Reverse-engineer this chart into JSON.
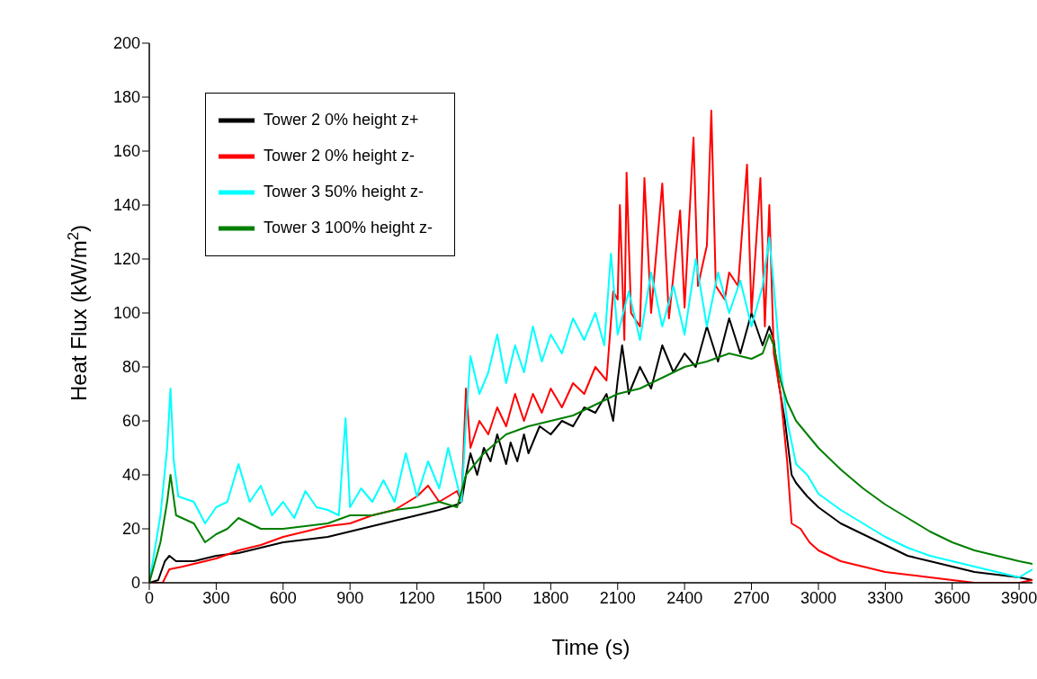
{
  "chart_data": {
    "type": "line",
    "xlabel": "Time (s)",
    "ylabel": "Heat Flux (kW/m$^{2}$)",
    "xlim": [
      0,
      3960
    ],
    "xticks": [
      0,
      300,
      600,
      900,
      1200,
      1500,
      1800,
      2100,
      2400,
      2700,
      3000,
      3300,
      3600,
      3900
    ],
    "ylim": [
      0,
      200
    ],
    "yticks": [
      0,
      20,
      40,
      60,
      80,
      100,
      120,
      140,
      160,
      180,
      200
    ],
    "legend": "top left",
    "marker": "none",
    "series": [
      {
        "name": "Tower 2 0% height z+",
        "color": "#000000",
        "x": [
          0,
          40,
          70,
          90,
          120,
          200,
          300,
          400,
          500,
          600,
          700,
          800,
          900,
          1000,
          1100,
          1200,
          1300,
          1380,
          1400,
          1420,
          1440,
          1470,
          1500,
          1530,
          1560,
          1600,
          1620,
          1650,
          1680,
          1700,
          1750,
          1800,
          1850,
          1900,
          1950,
          2000,
          2050,
          2080,
          2100,
          2120,
          2150,
          2200,
          2250,
          2300,
          2350,
          2400,
          2450,
          2500,
          2550,
          2600,
          2650,
          2700,
          2750,
          2780,
          2800,
          2820,
          2850,
          2880,
          2900,
          2950,
          3000,
          3100,
          3200,
          3300,
          3400,
          3500,
          3600,
          3700,
          3800,
          3900,
          3960
        ],
        "values": [
          0,
          1,
          8,
          10,
          8,
          8,
          10,
          11,
          13,
          15,
          16,
          17,
          19,
          21,
          23,
          25,
          27,
          29,
          30,
          40,
          48,
          40,
          50,
          45,
          55,
          44,
          52,
          45,
          55,
          48,
          58,
          55,
          60,
          58,
          65,
          63,
          70,
          60,
          75,
          88,
          70,
          80,
          72,
          88,
          78,
          85,
          80,
          95,
          82,
          98,
          85,
          100,
          88,
          95,
          90,
          75,
          60,
          40,
          37,
          32,
          28,
          22,
          18,
          14,
          10,
          8,
          6,
          4,
          3,
          2,
          1
        ]
      },
      {
        "name": "Tower 2 0% height z-",
        "color": "#ff0000",
        "x": [
          0,
          60,
          90,
          150,
          200,
          300,
          400,
          500,
          600,
          700,
          800,
          900,
          1000,
          1100,
          1200,
          1250,
          1300,
          1380,
          1400,
          1420,
          1440,
          1480,
          1520,
          1560,
          1600,
          1640,
          1680,
          1720,
          1760,
          1800,
          1850,
          1900,
          1950,
          2000,
          2050,
          2080,
          2100,
          2110,
          2130,
          2140,
          2160,
          2200,
          2220,
          2250,
          2300,
          2330,
          2380,
          2400,
          2440,
          2460,
          2500,
          2520,
          2540,
          2580,
          2600,
          2640,
          2680,
          2700,
          2740,
          2760,
          2780,
          2800,
          2830,
          2860,
          2880,
          2920,
          2960,
          3000,
          3100,
          3200,
          3300,
          3400,
          3500,
          3600,
          3700,
          3800,
          3900,
          3960
        ],
        "values": [
          0,
          0,
          5,
          6,
          7,
          9,
          12,
          14,
          17,
          19,
          21,
          22,
          25,
          27,
          32,
          36,
          30,
          34,
          30,
          72,
          50,
          60,
          55,
          65,
          58,
          70,
          60,
          70,
          63,
          72,
          65,
          74,
          70,
          80,
          75,
          108,
          105,
          140,
          90,
          152,
          100,
          95,
          150,
          100,
          148,
          98,
          138,
          102,
          165,
          110,
          125,
          175,
          110,
          105,
          115,
          110,
          155,
          100,
          150,
          95,
          140,
          85,
          70,
          45,
          22,
          20,
          15,
          12,
          8,
          6,
          4,
          3,
          2,
          1,
          0,
          0,
          0,
          1
        ]
      },
      {
        "name": "Tower 3 50% height z-",
        "color": "#00ffff",
        "x": [
          0,
          50,
          80,
          95,
          110,
          130,
          200,
          250,
          300,
          350,
          400,
          450,
          500,
          550,
          600,
          650,
          700,
          750,
          800,
          850,
          880,
          900,
          950,
          1000,
          1050,
          1100,
          1150,
          1200,
          1250,
          1300,
          1340,
          1400,
          1420,
          1440,
          1480,
          1520,
          1560,
          1600,
          1640,
          1680,
          1720,
          1760,
          1800,
          1850,
          1900,
          1950,
          2000,
          2040,
          2070,
          2100,
          2150,
          2200,
          2250,
          2300,
          2350,
          2400,
          2450,
          2500,
          2550,
          2600,
          2650,
          2700,
          2750,
          2780,
          2800,
          2830,
          2860,
          2900,
          2950,
          3000,
          3100,
          3200,
          3300,
          3400,
          3500,
          3600,
          3700,
          3800,
          3900,
          3960
        ],
        "values": [
          0,
          25,
          50,
          72,
          45,
          32,
          30,
          22,
          28,
          30,
          44,
          30,
          36,
          25,
          30,
          24,
          34,
          28,
          27,
          25,
          61,
          28,
          35,
          30,
          38,
          30,
          48,
          32,
          45,
          35,
          50,
          30,
          60,
          84,
          70,
          78,
          92,
          74,
          88,
          78,
          95,
          82,
          92,
          85,
          98,
          90,
          100,
          88,
          122,
          92,
          108,
          90,
          115,
          95,
          110,
          92,
          120,
          95,
          115,
          100,
          112,
          95,
          110,
          128,
          110,
          80,
          60,
          44,
          40,
          33,
          27,
          22,
          17,
          13,
          10,
          8,
          6,
          4,
          2,
          5
        ]
      },
      {
        "name": "Tower 3 100% height z-",
        "color": "#007f00",
        "x": [
          0,
          50,
          80,
          95,
          120,
          200,
          250,
          300,
          350,
          400,
          500,
          600,
          700,
          800,
          900,
          1000,
          1100,
          1200,
          1300,
          1380,
          1420,
          1500,
          1600,
          1700,
          1800,
          1900,
          2000,
          2100,
          2200,
          2300,
          2400,
          2500,
          2600,
          2700,
          2750,
          2780,
          2800,
          2830,
          2860,
          2900,
          3000,
          3100,
          3200,
          3300,
          3400,
          3500,
          3600,
          3700,
          3800,
          3900,
          3960
        ],
        "values": [
          0,
          15,
          30,
          40,
          25,
          22,
          15,
          18,
          20,
          24,
          20,
          20,
          21,
          22,
          25,
          25,
          27,
          28,
          30,
          28,
          40,
          48,
          55,
          58,
          60,
          62,
          66,
          70,
          72,
          76,
          80,
          82,
          85,
          83,
          85,
          92,
          88,
          75,
          67,
          60,
          50,
          42,
          35,
          29,
          24,
          19,
          15,
          12,
          10,
          8,
          7
        ]
      }
    ]
  }
}
